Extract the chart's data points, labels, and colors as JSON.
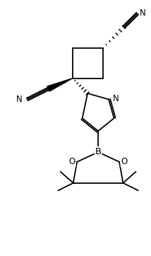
{
  "figsize": [
    2.14,
    3.62
  ],
  "dpi": 100,
  "bg_color": "#ffffff",
  "line_color": "#000000",
  "line_width": 1.3,
  "font_size": 8.5,
  "xlim": [
    0,
    10
  ],
  "ylim": [
    0,
    17
  ]
}
